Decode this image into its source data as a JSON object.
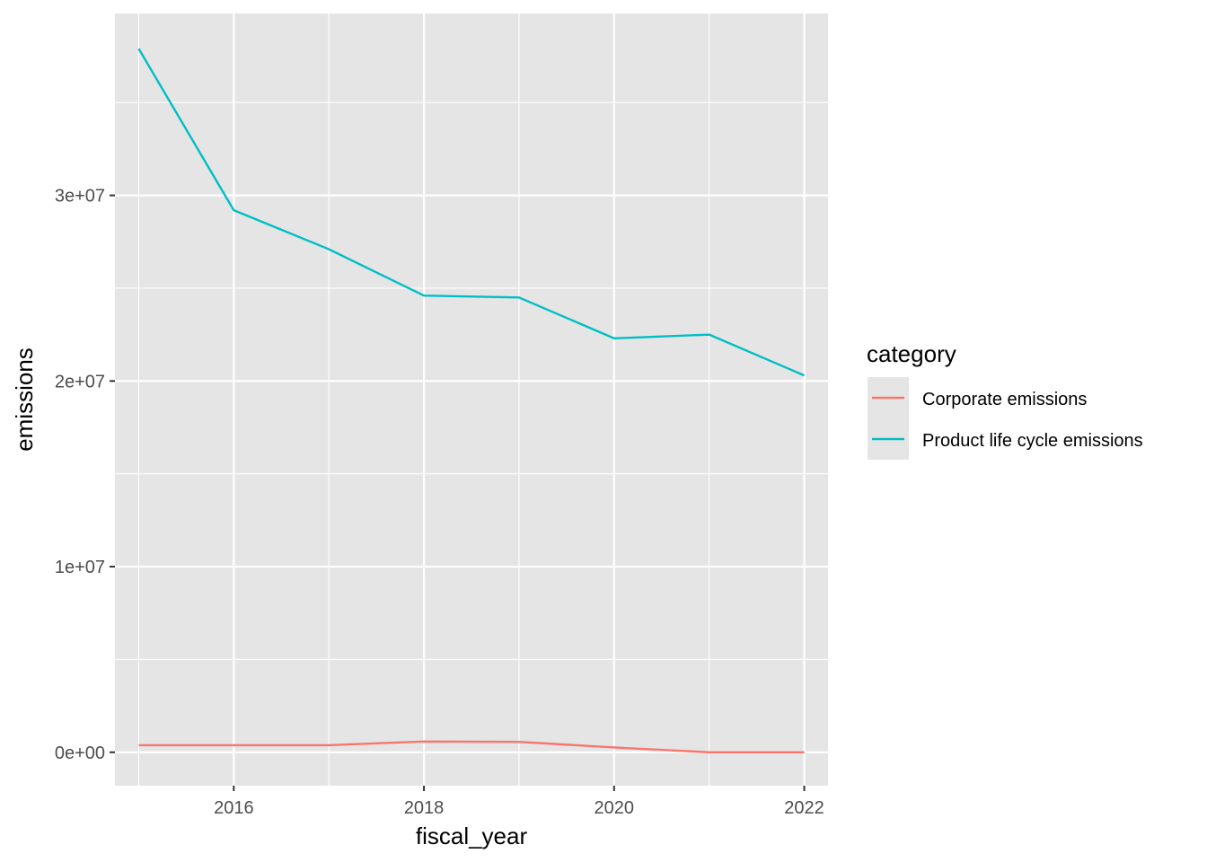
{
  "chart_data": {
    "type": "line",
    "xlabel": "fiscal_year",
    "ylabel": "emissions",
    "x": [
      2015,
      2016,
      2017,
      2018,
      2019,
      2020,
      2021,
      2022
    ],
    "xlim": [
      2014.75,
      2022.25
    ],
    "ylim": [
      -1800000,
      39800000
    ],
    "x_ticks": [
      2016,
      2018,
      2020,
      2022
    ],
    "x_tick_labels": [
      "2016",
      "2018",
      "2020",
      "2022"
    ],
    "y_ticks": [
      0,
      10000000,
      20000000,
      30000000
    ],
    "y_tick_labels": [
      "0e+00",
      "1e+07",
      "2e+07",
      "3e+07"
    ],
    "grid": true,
    "panel_background": "#E5E5E5",
    "grid_color": "#FFFFFF",
    "legend": {
      "title": "category",
      "position": "right",
      "entries": [
        "Corporate emissions",
        "Product life cycle emissions"
      ]
    },
    "series": [
      {
        "name": "Corporate emissions",
        "color": "#F8766D",
        "values": [
          380000,
          380000,
          380000,
          580000,
          560000,
          260000,
          0,
          0
        ]
      },
      {
        "name": "Product life cycle emissions",
        "color": "#00BFC4",
        "values": [
          37900000,
          29200000,
          27100000,
          24600000,
          24500000,
          22300000,
          22500000,
          20300000
        ]
      }
    ]
  }
}
